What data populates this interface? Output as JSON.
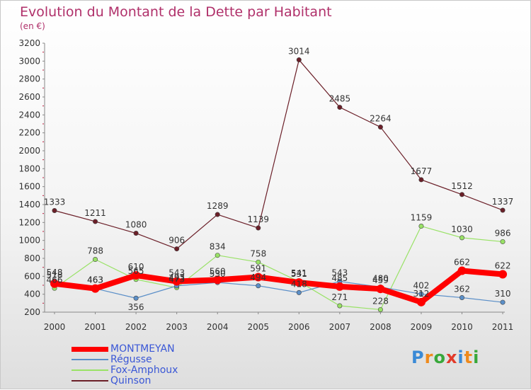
{
  "chart_data": {
    "type": "line",
    "title": "Evolution du Montant de la Dette par Habitant",
    "subtitle": "(en €)",
    "categories": [
      "2000",
      "2001",
      "2002",
      "2003",
      "2004",
      "2005",
      "2006",
      "2007",
      "2008",
      "2009",
      "2010",
      "2011"
    ],
    "ylim": [
      200,
      3200
    ],
    "yticks": [
      200,
      400,
      600,
      800,
      1000,
      1200,
      1400,
      1600,
      1800,
      2000,
      2200,
      2400,
      2600,
      2800,
      3000,
      3200
    ],
    "grid": false,
    "legend_position": "bottom-left",
    "series": [
      {
        "name": "MONTMEYAN",
        "color": "#ff0000",
        "values": [
          518,
          463,
          610,
          543,
          560,
          591,
          531,
          485,
          459,
          312,
          662,
          622
        ]
      },
      {
        "name": "Régusse",
        "color": "#5b8fc8",
        "values": [
          548,
          463,
          356,
          493,
          530,
          494,
          418,
          543,
          480,
          402,
          362,
          310
        ]
      },
      {
        "name": "Fox-Amphoux",
        "color": "#99e266",
        "values": [
          466,
          788,
          565,
          473,
          834,
          758,
          541,
          271,
          228,
          1159,
          1030,
          986
        ]
      },
      {
        "name": "Quinson",
        "color": "#6b1f28",
        "values": [
          1333,
          1211,
          1080,
          906,
          1289,
          1139,
          3014,
          2485,
          2264,
          1677,
          1512,
          1337
        ]
      }
    ]
  },
  "logo": {
    "text": [
      "P",
      "r",
      "o",
      "x",
      "i",
      "t",
      "i"
    ],
    "colors": [
      "#3a8ad6",
      "#ef8a1c",
      "#39a83b",
      "#e23a2a",
      "#3a8ad6",
      "#ef8a1c",
      "#39a83b"
    ]
  }
}
